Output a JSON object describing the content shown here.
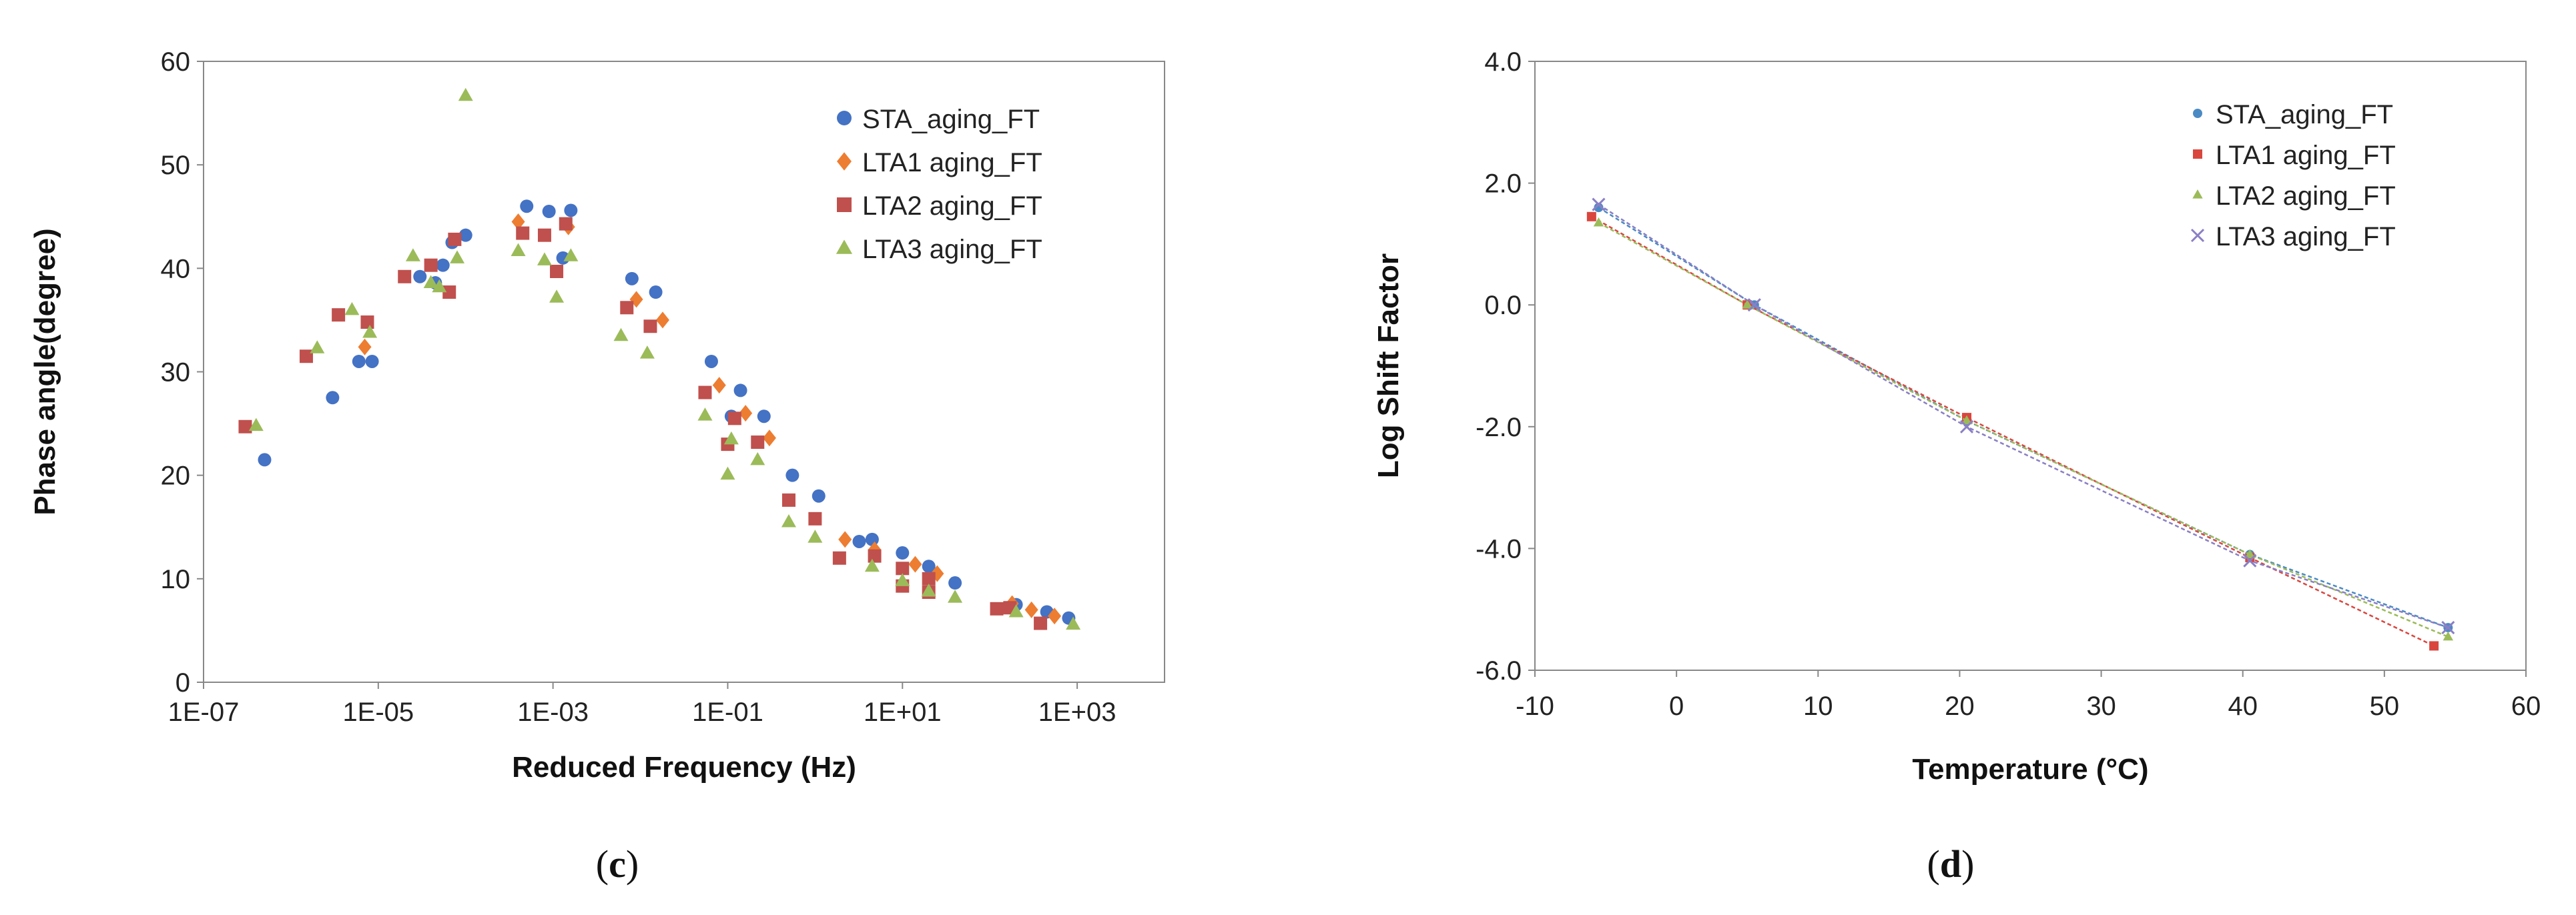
{
  "chart_data": [
    {
      "type": "scatter",
      "caption_letter": "c",
      "xscale": "log",
      "xlabel": "Reduced Frequency (Hz)",
      "ylabel": "Phase angle(degree)",
      "xlim": [
        1e-07,
        10000
      ],
      "ylim": [
        0,
        60
      ],
      "grid": false,
      "legend": "top-right",
      "x_tick_labels": [
        "1E-07",
        "1E-05",
        "1E-03",
        "1E-01",
        "1E+01",
        "1E+03"
      ],
      "y_tick_labels": [
        "0",
        "10",
        "20",
        "30",
        "40",
        "50",
        "60"
      ],
      "series": [
        {
          "name": "STA_aging_FT",
          "color": "#4472c4",
          "marker": "circle",
          "points": [
            [
              5e-07,
              21.5
            ],
            [
              3e-06,
              27.5
            ],
            [
              6e-06,
              31
            ],
            [
              8.5e-06,
              31
            ],
            [
              3e-05,
              39.2
            ],
            [
              4.5e-05,
              38.6
            ],
            [
              5.5e-05,
              40.3
            ],
            [
              7e-05,
              42.5
            ],
            [
              0.0001,
              43.2
            ],
            [
              0.0005,
              46
            ],
            [
              0.0009,
              45.5
            ],
            [
              0.0013,
              41
            ],
            [
              0.0016,
              45.6
            ],
            [
              0.008,
              39
            ],
            [
              0.015,
              37.7
            ],
            [
              0.065,
              31
            ],
            [
              0.11,
              25.7
            ],
            [
              0.14,
              28.2
            ],
            [
              0.26,
              25.7
            ],
            [
              0.55,
              20
            ],
            [
              1.1,
              18
            ],
            [
              3.2,
              13.6
            ],
            [
              4.5,
              13.8
            ],
            [
              10.0,
              12.5
            ],
            [
              20.0,
              11.2
            ],
            [
              40.0,
              9.6
            ],
            [
              200.0,
              7.5
            ],
            [
              450.0,
              6.8
            ],
            [
              800.0,
              6.2
            ]
          ]
        },
        {
          "name": "LTA1 aging_FT",
          "color": "#ed7d31",
          "marker": "diamond",
          "points": [
            [
              7e-06,
              32.4
            ],
            [
              0.0004,
              44.5
            ],
            [
              0.0015,
              44
            ],
            [
              0.009,
              37
            ],
            [
              0.018,
              35
            ],
            [
              0.08,
              28.7
            ],
            [
              0.16,
              26
            ],
            [
              0.3,
              23.6
            ],
            [
              2.2,
              13.8
            ],
            [
              4.8,
              12.8
            ],
            [
              14.0,
              11.4
            ],
            [
              25.0,
              10.5
            ],
            [
              180.0,
              7.6
            ],
            [
              300.0,
              7
            ],
            [
              550.0,
              6.4
            ]
          ]
        },
        {
          "name": "LTA2 aging_FT",
          "color": "#c0504d",
          "marker": "square",
          "points": [
            [
              3e-07,
              24.7
            ],
            [
              1.5e-06,
              31.5
            ],
            [
              3.5e-06,
              35.5
            ],
            [
              7.5e-06,
              34.8
            ],
            [
              2e-05,
              39.2
            ],
            [
              4e-05,
              40.3
            ],
            [
              6.5e-05,
              37.7
            ],
            [
              7.5e-05,
              42.8
            ],
            [
              0.00045,
              43.4
            ],
            [
              0.0008,
              43.2
            ],
            [
              0.0011,
              39.7
            ],
            [
              0.0014,
              44.3
            ],
            [
              0.007,
              36.2
            ],
            [
              0.013,
              34.4
            ],
            [
              0.055,
              28
            ],
            [
              0.1,
              23
            ],
            [
              0.12,
              25.5
            ],
            [
              0.22,
              23.2
            ],
            [
              0.5,
              17.6
            ],
            [
              1.0,
              15.8
            ],
            [
              1.9,
              12
            ],
            [
              4.8,
              12.2
            ],
            [
              10.0,
              9.3
            ],
            [
              10.0,
              11
            ],
            [
              20.0,
              8.7
            ],
            [
              20.0,
              10
            ],
            [
              120.0,
              7.1
            ],
            [
              170.0,
              7.2
            ],
            [
              380.0,
              5.7
            ]
          ]
        },
        {
          "name": "LTA3 aging_FT",
          "color": "#9bbb59",
          "marker": "triangle",
          "points": [
            [
              4e-07,
              24.8
            ],
            [
              2e-06,
              32.3
            ],
            [
              5e-06,
              36
            ],
            [
              8e-06,
              33.8
            ],
            [
              2.5e-05,
              41.2
            ],
            [
              4e-05,
              38.6
            ],
            [
              5e-05,
              38.2
            ],
            [
              8e-05,
              41
            ],
            [
              0.0001,
              56.7
            ],
            [
              0.0004,
              41.7
            ],
            [
              0.0008,
              40.8
            ],
            [
              0.0011,
              37.2
            ],
            [
              0.0016,
              41.2
            ],
            [
              0.006,
              33.5
            ],
            [
              0.012,
              31.8
            ],
            [
              0.055,
              25.8
            ],
            [
              0.1,
              20.1
            ],
            [
              0.11,
              23.5
            ],
            [
              0.22,
              21.5
            ],
            [
              0.5,
              15.5
            ],
            [
              1.0,
              14
            ],
            [
              4.5,
              11.2
            ],
            [
              10.0,
              9.8
            ],
            [
              20.0,
              8.8
            ],
            [
              40.0,
              8.2
            ],
            [
              200.0,
              6.8
            ],
            [
              900.0,
              5.6
            ]
          ]
        }
      ]
    },
    {
      "type": "line",
      "caption_letter": "d",
      "xlabel": "Temperature (°C)",
      "ylabel": "Log Shift Factor",
      "xlim": [
        -10,
        60
      ],
      "ylim": [
        -6,
        4
      ],
      "grid": false,
      "legend": "top-right",
      "x_tick_labels": [
        "-10",
        "0",
        "10",
        "20",
        "30",
        "40",
        "50",
        "60"
      ],
      "y_tick_labels": [
        "-6.0",
        "-4.0",
        "-2.0",
        "0.0",
        "2.0",
        "4.0"
      ],
      "series": [
        {
          "name": "STA_aging_FT",
          "color": "#4a8ac4",
          "marker": "circle",
          "points": [
            [
              -5.5,
              1.6
            ],
            [
              5.5,
              0
            ],
            [
              20.5,
              -1.9
            ],
            [
              40.5,
              -4.1
            ],
            [
              54.5,
              -5.3
            ]
          ]
        },
        {
          "name": "LTA1 aging_FT",
          "color": "#d9463e",
          "marker": "square",
          "points": [
            [
              -6,
              1.45
            ],
            [
              5,
              0
            ],
            [
              20.5,
              -1.85
            ],
            [
              40.5,
              -4.15
            ],
            [
              53.5,
              -5.6
            ]
          ]
        },
        {
          "name": "LTA2 aging_FT",
          "color": "#9bbb59",
          "marker": "triangle",
          "points": [
            [
              -5.5,
              1.35
            ],
            [
              5,
              0
            ],
            [
              20.5,
              -1.9
            ],
            [
              40.5,
              -4.1
            ],
            [
              54.5,
              -5.45
            ]
          ]
        },
        {
          "name": "LTA3 aging_FT",
          "color": "#8a7fc4",
          "marker": "x",
          "points": [
            [
              -5.5,
              1.65
            ],
            [
              5.5,
              0
            ],
            [
              20.5,
              -2
            ],
            [
              40.5,
              -4.2
            ],
            [
              54.5,
              -5.3
            ]
          ]
        }
      ]
    }
  ]
}
